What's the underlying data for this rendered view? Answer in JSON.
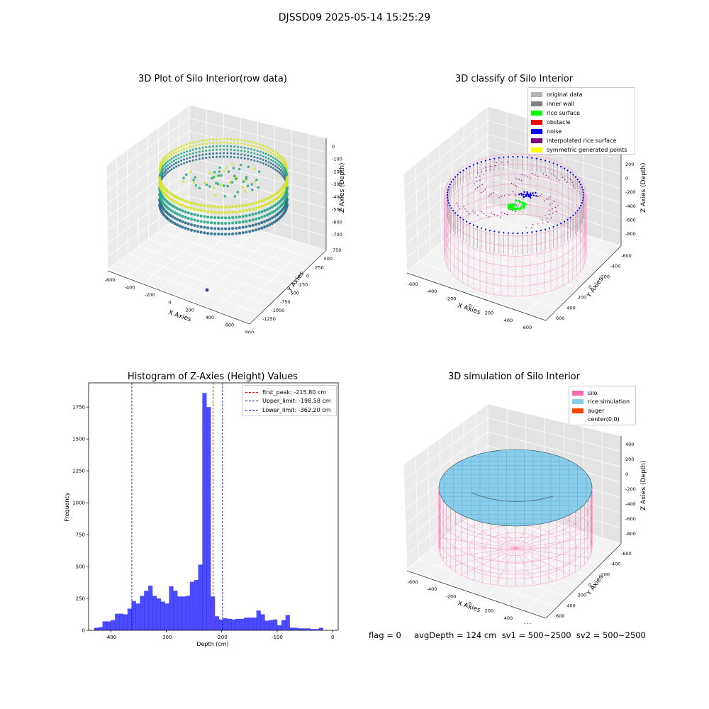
{
  "suptitle": "DJSSD09 2025-05-14 15:25:29",
  "plot_raw": {
    "title": "3D Plot of Silo Interior(row data)",
    "xlabel": "X Axies",
    "ylabel": "Y Axies",
    "zlabel": "Z Axies (Depth)",
    "x_ticks": [
      "-600",
      "-400",
      "-200",
      "0",
      "200",
      "400",
      "600",
      "800"
    ],
    "y_ticks": [
      "750",
      "500",
      "250",
      "0",
      "-250",
      "-500",
      "-750",
      "-1000",
      "-1250"
    ],
    "z_ticks": [
      "0",
      "-100",
      "-200",
      "-300",
      "-400",
      "-500",
      "-600",
      "-700"
    ],
    "colors": {
      "high": "#d4e42a",
      "mid": "#2aa88a",
      "low": "#2c6f8c",
      "outlier": "#5b2a86"
    }
  },
  "plot_classify": {
    "title": "3D classify of Silo Interior",
    "xlabel": "X Axies",
    "ylabel": "Y Axies",
    "zlabel": "Z Axies (Depth)",
    "x_ticks": [
      "-600",
      "-400",
      "-200",
      "0",
      "200",
      "400",
      "600"
    ],
    "y_ticks": [
      "600",
      "400",
      "200",
      "0",
      "-200",
      "-400",
      "-600"
    ],
    "z_ticks": [
      "200",
      "0",
      "-200",
      "-400",
      "-600",
      "-800"
    ],
    "z_top_partial": "0",
    "legend": [
      {
        "label": "original data",
        "color": "#b3b3b3"
      },
      {
        "label": "inner wall",
        "color": "#808080"
      },
      {
        "label": "rice surface",
        "color": "#00ff00"
      },
      {
        "label": "obstacle",
        "color": "#ff0000"
      },
      {
        "label": "noise",
        "color": "#0000ff"
      },
      {
        "label": "interpolated rice surface",
        "color": "#800080"
      },
      {
        "label": "symmetric generated points",
        "color": "#ffff00"
      }
    ],
    "colors": {
      "wire": "#ff69b4",
      "wall": "#8c8c8c",
      "noise": "#0000ff",
      "rice": "#00ff00",
      "interp": "#800080"
    }
  },
  "plot_sim": {
    "title": "3D simulation of Silo Interior",
    "xlabel": "X Axies",
    "ylabel": "Y Axies",
    "zlabel": "Z Axies (Depth)",
    "x_ticks": [
      "-600",
      "-400",
      "-200",
      "0",
      "200",
      "400",
      "600"
    ],
    "y_ticks": [
      "600",
      "400",
      "200",
      "0",
      "-200",
      "-400",
      "-600"
    ],
    "z_ticks": [
      "400",
      "200",
      "0",
      "-200",
      "-400",
      "-600",
      "-800"
    ],
    "legend": [
      {
        "label": "silo",
        "color": "#ff69b4"
      },
      {
        "label": "rice simulation",
        "color": "#87ceeb"
      },
      {
        "label": "auger",
        "color": "#ff4500"
      },
      {
        "label": "center(0,0)",
        "color": ""
      }
    ],
    "colors": {
      "silo": "#ff69b4",
      "rice": "#87ceeb",
      "mesh": "#3a5560"
    }
  },
  "chart_data": {
    "type": "bar",
    "title": "Histogram of Z-Axies (Height) Values",
    "xlabel": "Depth (cm)",
    "ylabel": "Frequency",
    "xlim": [
      -440,
      10
    ],
    "ylim": [
      0,
      1940
    ],
    "x_ticks": [
      -400,
      -300,
      -200,
      -100,
      0
    ],
    "y_ticks": [
      0,
      250,
      500,
      750,
      1000,
      1250,
      1500,
      1750
    ],
    "bin_width": 7.5,
    "bin_start": -430,
    "values": [
      20,
      25,
      70,
      70,
      80,
      130,
      130,
      125,
      170,
      230,
      210,
      270,
      310,
      350,
      270,
      250,
      225,
      210,
      345,
      310,
      265,
      265,
      270,
      380,
      395,
      515,
      1860,
      1750,
      265,
      110,
      85,
      95,
      90,
      85,
      90,
      90,
      100,
      100,
      100,
      155,
      125,
      75,
      80,
      85,
      40,
      80,
      120,
      20,
      20,
      15,
      15,
      15,
      10,
      10,
      20
    ],
    "bar_color": "#0000ff",
    "lines": [
      {
        "label": "first_peak: -215.80 cm",
        "x": -215.8,
        "color": "#ff0000"
      },
      {
        "label": "Upper_limit: -198.58 cm",
        "x": -198.58,
        "color": "#0000cc"
      },
      {
        "label": "Lower_limit: -362.20 cm",
        "x": -362.2,
        "color": "#0000cc"
      }
    ]
  },
  "status_line": "flag = 0     avgDepth = 124 cm  sv1 = 500~2500  sv2 = 500~2500"
}
